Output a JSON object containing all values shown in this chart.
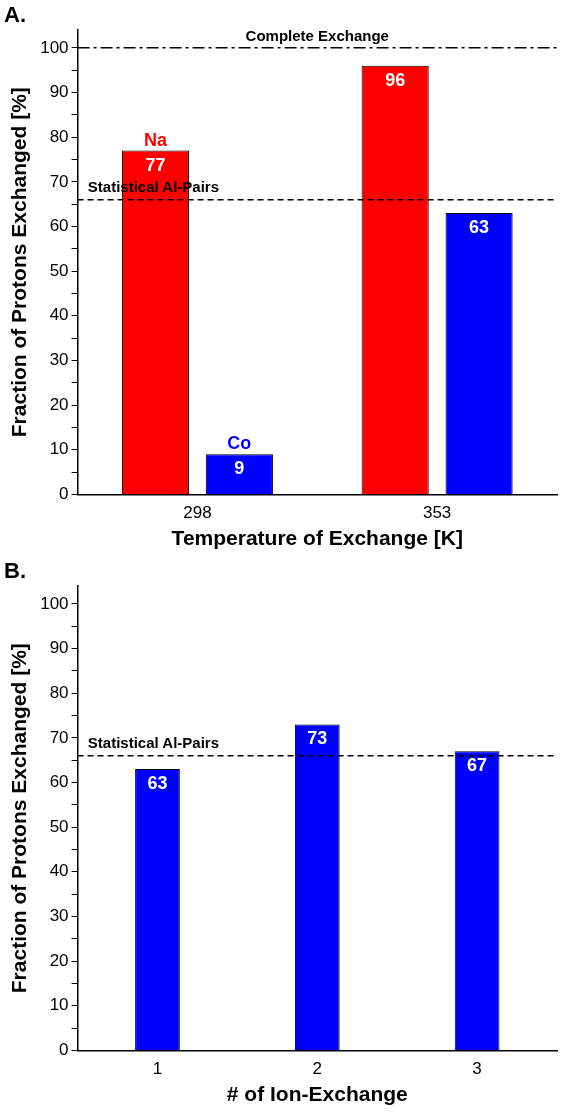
{
  "chart_data": [
    {
      "type": "bar",
      "xlabel": "Temperature of Exchange [K]",
      "ylabel": "Fraction of Protons Exchanged [%]",
      "categories": [
        "298",
        "353"
      ],
      "series": [
        {
          "name": "Na",
          "color": "#ff0000",
          "values": [
            77,
            96
          ]
        },
        {
          "name": "Co",
          "color": "#0000ff",
          "values": [
            9,
            63
          ]
        }
      ],
      "ylim": [
        0,
        104
      ],
      "yticks": [
        0,
        {
          "value": 5,
          "label": null
        },
        10,
        {
          "value": 15,
          "label": null
        },
        20,
        {
          "value": 25,
          "label": null
        },
        30,
        {
          "value": 35,
          "label": null
        },
        40,
        {
          "value": 45,
          "label": null
        },
        50,
        {
          "value": 55,
          "label": null
        },
        60,
        {
          "value": 65,
          "label": null
        },
        70,
        {
          "value": 75,
          "label": null
        },
        80,
        {
          "value": 85,
          "label": null
        },
        90,
        {
          "value": 95,
          "label": null
        },
        100
      ],
      "ref_lines": [
        {
          "axis": "y",
          "value": 100,
          "label": "Complete Exchange",
          "line_style": "dashdot",
          "color": "#000000"
        },
        {
          "axis": "y",
          "value": 66,
          "label": "Statistical Al-Pairs",
          "line_style": "dashed",
          "color": "#000000"
        }
      ],
      "data_labels": true,
      "legend": false,
      "grid": false,
      "annotations": [
        "A."
      ]
    },
    {
      "type": "bar",
      "xlabel": "# of Ion-Exchange",
      "ylabel": "Fraction of Protons Exchanged [%]",
      "categories": [
        "1",
        "2",
        "3"
      ],
      "series": [
        {
          "color": "#0000ff",
          "values": [
            63,
            73,
            67
          ]
        }
      ],
      "ylim": [
        0,
        104
      ],
      "yticks": [
        0,
        {
          "value": 5,
          "label": null
        },
        10,
        {
          "value": 15,
          "label": null
        },
        20,
        {
          "value": 25,
          "label": null
        },
        30,
        {
          "value": 35,
          "label": null
        },
        40,
        {
          "value": 45,
          "label": null
        },
        50,
        {
          "value": 55,
          "label": null
        },
        60,
        {
          "value": 65,
          "label": null
        },
        70,
        {
          "value": 75,
          "label": null
        },
        80,
        {
          "value": 85,
          "label": null
        },
        90,
        {
          "value": 95,
          "label": null
        },
        100
      ],
      "ref_lines": [
        {
          "axis": "y",
          "value": 66,
          "label": "Statistical Al-Pairs",
          "line_style": "dashed",
          "color": "#000000"
        }
      ],
      "data_labels": true,
      "legend": false,
      "grid": false,
      "annotations": [
        "B."
      ]
    }
  ]
}
